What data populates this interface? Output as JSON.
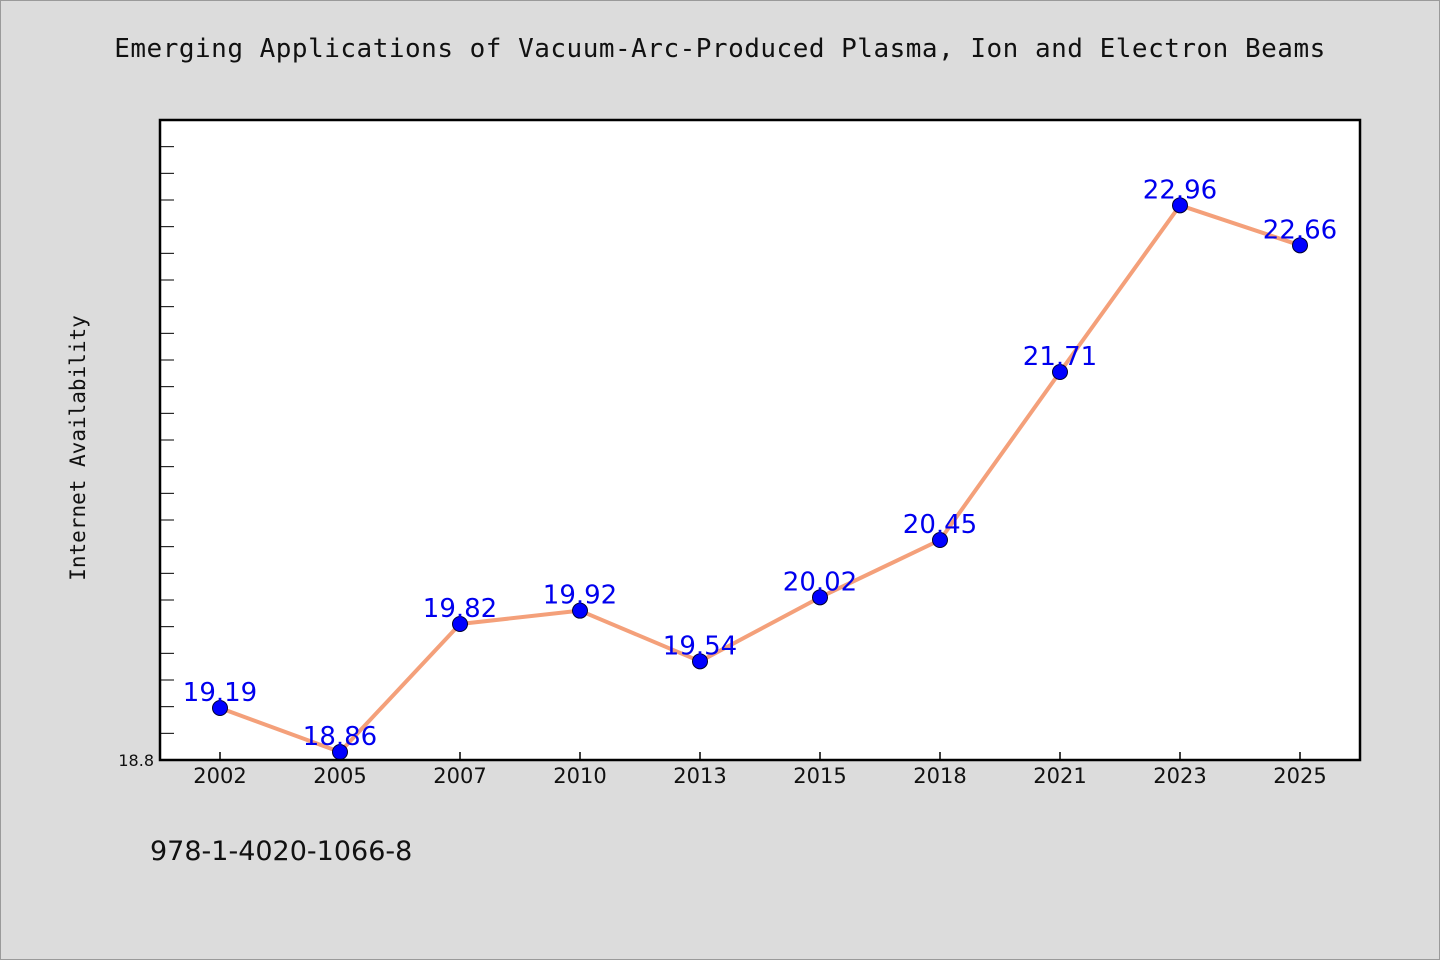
{
  "chart_data": {
    "type": "line",
    "title": "Emerging Applications of Vacuum-Arc-Produced Plasma, Ion and Electron Beams",
    "xlabel": "",
    "ylabel": "Internet Availability",
    "categories": [
      "2002",
      "2005",
      "2007",
      "2010",
      "2013",
      "2015",
      "2018",
      "2021",
      "2023",
      "2025"
    ],
    "series": [
      {
        "values": [
          19.19,
          18.86,
          19.82,
          19.92,
          19.54,
          20.02,
          20.45,
          21.71,
          22.96,
          22.66
        ]
      }
    ],
    "data_labels": [
      "19.19",
      "18.86",
      "19.82",
      "19.92",
      "19.54",
      "20.02",
      "20.45",
      "21.71",
      "22.96",
      "22.66"
    ],
    "ylim": [
      18.8,
      23.6
    ],
    "y_tick_labels": [
      "18.8"
    ],
    "grid": false,
    "legend": "none",
    "colors": {
      "line": "#f4a07a",
      "marker": "#0000ff",
      "label": "#0000ee",
      "background": "#dcdcdc",
      "plot_background": "#ffffff"
    }
  },
  "footer": {
    "isbn": "978-1-4020-1066-8"
  }
}
